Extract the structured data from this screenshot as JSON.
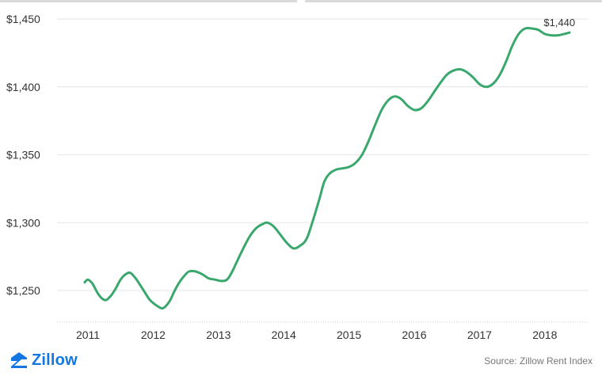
{
  "chart_data": {
    "type": "line",
    "title": "",
    "xlabel": "",
    "ylabel": "",
    "ylim": [
      1225,
      1460
    ],
    "yticks": [
      1250,
      1300,
      1350,
      1400,
      1450
    ],
    "ytick_labels": [
      "$1,250",
      "$1,300",
      "$1,350",
      "$1,400",
      "$1,450"
    ],
    "xticks": [
      2011,
      2012,
      2013,
      2014,
      2015,
      2016,
      2017,
      2018
    ],
    "xtick_labels": [
      "2011",
      "2012",
      "2013",
      "2014",
      "2015",
      "2016",
      "2017",
      "2018"
    ],
    "grid": "horizontal",
    "series": [
      {
        "color": "#3aa76d",
        "points": [
          [
            2010.95,
            1256
          ],
          [
            2011.0,
            1258
          ],
          [
            2011.07,
            1255
          ],
          [
            2011.15,
            1248
          ],
          [
            2011.22,
            1244
          ],
          [
            2011.28,
            1243
          ],
          [
            2011.35,
            1246
          ],
          [
            2011.42,
            1251
          ],
          [
            2011.5,
            1258
          ],
          [
            2011.58,
            1262
          ],
          [
            2011.65,
            1263
          ],
          [
            2011.73,
            1259
          ],
          [
            2011.8,
            1254
          ],
          [
            2011.88,
            1248
          ],
          [
            2011.95,
            1243
          ],
          [
            2012.05,
            1239
          ],
          [
            2012.15,
            1237
          ],
          [
            2012.25,
            1242
          ],
          [
            2012.32,
            1249
          ],
          [
            2012.4,
            1256
          ],
          [
            2012.48,
            1261
          ],
          [
            2012.55,
            1264
          ],
          [
            2012.65,
            1264
          ],
          [
            2012.75,
            1262
          ],
          [
            2012.85,
            1259
          ],
          [
            2012.95,
            1258
          ],
          [
            2013.05,
            1257
          ],
          [
            2013.13,
            1258
          ],
          [
            2013.2,
            1263
          ],
          [
            2013.28,
            1271
          ],
          [
            2013.38,
            1281
          ],
          [
            2013.48,
            1290
          ],
          [
            2013.58,
            1296
          ],
          [
            2013.68,
            1299
          ],
          [
            2013.75,
            1300
          ],
          [
            2013.85,
            1297
          ],
          [
            2013.95,
            1291
          ],
          [
            2014.05,
            1285
          ],
          [
            2014.15,
            1281
          ],
          [
            2014.25,
            1283
          ],
          [
            2014.35,
            1288
          ],
          [
            2014.45,
            1302
          ],
          [
            2014.55,
            1318
          ],
          [
            2014.62,
            1330
          ],
          [
            2014.7,
            1336
          ],
          [
            2014.8,
            1339
          ],
          [
            2014.9,
            1340
          ],
          [
            2015.0,
            1341
          ],
          [
            2015.1,
            1344
          ],
          [
            2015.2,
            1350
          ],
          [
            2015.3,
            1360
          ],
          [
            2015.4,
            1372
          ],
          [
            2015.5,
            1383
          ],
          [
            2015.6,
            1390
          ],
          [
            2015.7,
            1393
          ],
          [
            2015.8,
            1391
          ],
          [
            2015.9,
            1386
          ],
          [
            2016.0,
            1383
          ],
          [
            2016.1,
            1384
          ],
          [
            2016.2,
            1389
          ],
          [
            2016.3,
            1396
          ],
          [
            2016.4,
            1403
          ],
          [
            2016.5,
            1409
          ],
          [
            2016.6,
            1412
          ],
          [
            2016.7,
            1413
          ],
          [
            2016.8,
            1411
          ],
          [
            2016.9,
            1407
          ],
          [
            2017.0,
            1402
          ],
          [
            2017.1,
            1400
          ],
          [
            2017.2,
            1402
          ],
          [
            2017.3,
            1408
          ],
          [
            2017.4,
            1418
          ],
          [
            2017.5,
            1430
          ],
          [
            2017.6,
            1439
          ],
          [
            2017.7,
            1443
          ],
          [
            2017.8,
            1443
          ],
          [
            2017.9,
            1442
          ],
          [
            2018.0,
            1439
          ],
          [
            2018.1,
            1438
          ],
          [
            2018.2,
            1438
          ],
          [
            2018.3,
            1439
          ],
          [
            2018.38,
            1440
          ]
        ]
      }
    ],
    "annotations": [
      {
        "text": "$1,440",
        "x": 2018.38,
        "y": 1440
      }
    ]
  },
  "brand": {
    "name": "Zillow",
    "color": "#1277e1"
  },
  "source_text": "Source: Zillow Rent Index",
  "icons": {
    "logo": "zillow-logo-icon"
  }
}
